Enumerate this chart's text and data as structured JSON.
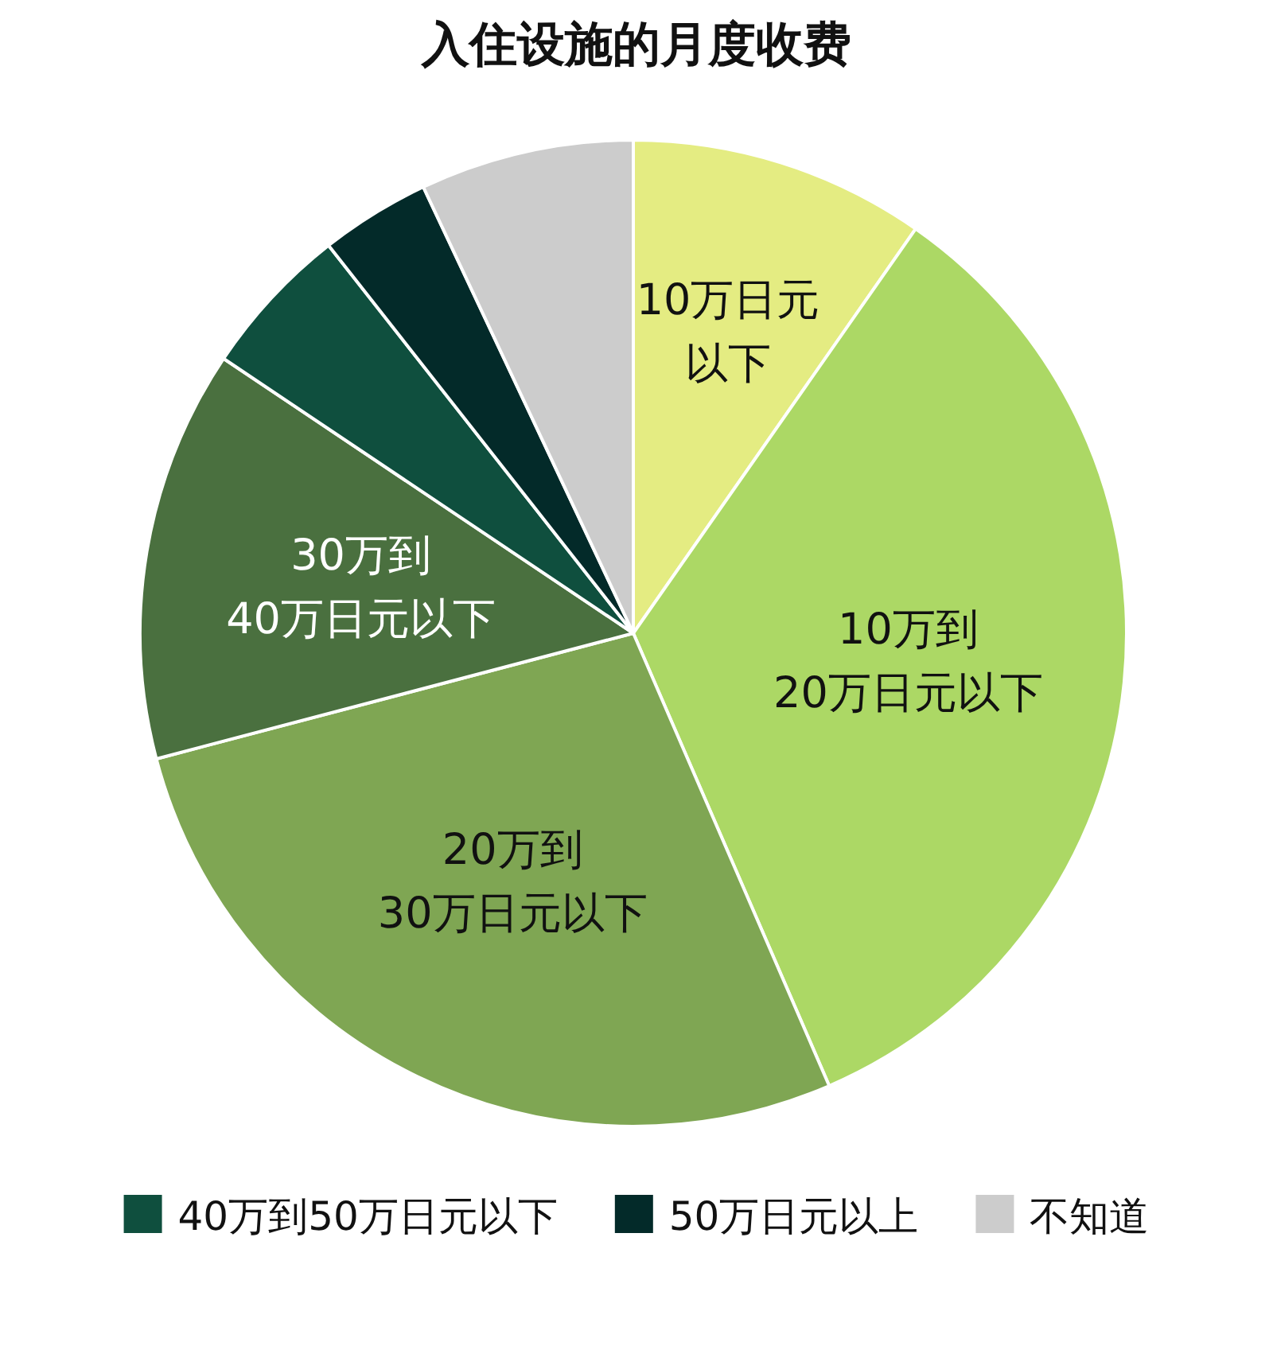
{
  "chart_data": {
    "type": "pie",
    "title": "入住设施的月度收费",
    "categories": [
      "10万日元以下",
      "10万到20万日元以下",
      "20万到30万日元以下",
      "30万到40万日元以下",
      "40万到50万日元以下",
      "50万日元以上",
      "不知道"
    ],
    "values": [
      9.7,
      33.8,
      27.4,
      13.5,
      5.0,
      3.6,
      7.0
    ],
    "colors": [
      "#e4ec82",
      "#acd865",
      "#7fa653",
      "#4a703f",
      "#0f4f3e",
      "#032a29",
      "#cccccc"
    ],
    "legend": "bottom"
  }
}
